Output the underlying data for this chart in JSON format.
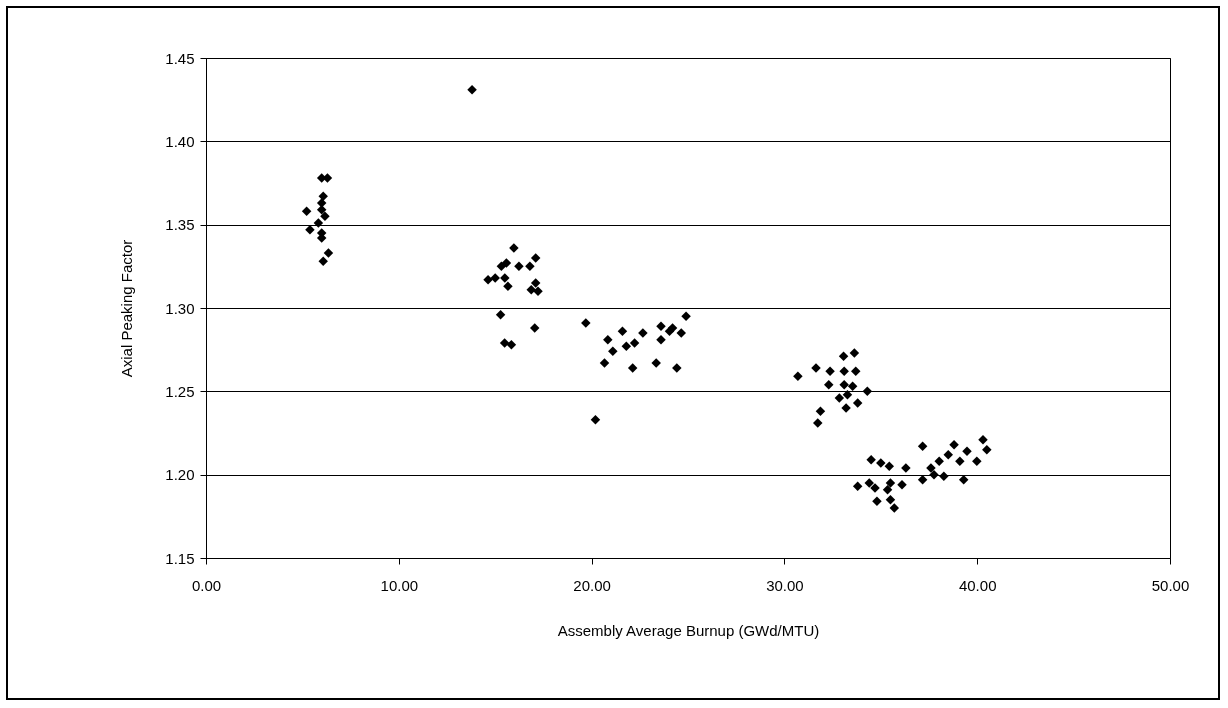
{
  "chart_data": {
    "type": "scatter",
    "xlabel": "Assembly Average Burnup (GWd/MTU)",
    "ylabel": "Axial Peaking Factor",
    "marker": "diamond",
    "grid": "y",
    "xlim": [
      0,
      50
    ],
    "xticks": [
      {
        "value": 0,
        "label": "0.00"
      },
      {
        "value": 10,
        "label": "10.00"
      },
      {
        "value": 20,
        "label": "20.00"
      },
      {
        "value": 30,
        "label": "30.00"
      },
      {
        "value": 40,
        "label": "40.00"
      },
      {
        "value": 50,
        "label": "50.00"
      }
    ],
    "ylim": [
      1.15,
      1.45
    ],
    "yticks": [
      1.15,
      {
        "value": 1.2,
        "label": "1.20"
      },
      1.25,
      {
        "value": 1.3,
        "label": "1.30"
      },
      1.35,
      {
        "value": 1.4,
        "label": "1.40"
      },
      1.45
    ],
    "series": [
      {
        "color": "#000000",
        "x": [
          6.0,
          6.3,
          6.08,
          6.0,
          5.22,
          6.0,
          6.17,
          5.83,
          5.39,
          6.0,
          6.0,
          6.35,
          6.08,
          13.8,
          15.97,
          15.58,
          15.32,
          16.23,
          17.1,
          16.8,
          14.63,
          15.0,
          15.5,
          15.66,
          17.1,
          16.87,
          17.22,
          15.28,
          17.05,
          15.49,
          15.84,
          20.84,
          21.6,
          21.1,
          21.8,
          22.23,
          22.66,
          23.6,
          24.04,
          24.65,
          20.67,
          22.13,
          23.35,
          24.42,
          20.2,
          19.7,
          23.6,
          24.2,
          24.9,
          30.7,
          31.64,
          32.37,
          33.07,
          33.63,
          33.1,
          33.7,
          32.3,
          33.1,
          33.54,
          34.3,
          32.85,
          33.27,
          33.2,
          33.8,
          31.87,
          31.73,
          37.17,
          38.8,
          40.3,
          40.5,
          39.47,
          38.5,
          38.03,
          39.1,
          39.98,
          34.5,
          35.0,
          35.44,
          36.3,
          37.6,
          37.76,
          38.27,
          37.17,
          39.3,
          33.8,
          34.4,
          34.7,
          35.5,
          36.1,
          35.35,
          34.8,
          35.5,
          35.7
        ],
        "values": [
          1.378,
          1.378,
          1.367,
          1.363,
          1.358,
          1.359,
          1.355,
          1.351,
          1.347,
          1.345,
          1.342,
          1.333,
          1.328,
          1.431,
          1.336,
          1.327,
          1.325,
          1.325,
          1.33,
          1.325,
          1.317,
          1.318,
          1.318,
          1.313,
          1.315,
          1.311,
          1.31,
          1.296,
          1.288,
          1.279,
          1.278,
          1.281,
          1.286,
          1.274,
          1.277,
          1.279,
          1.285,
          1.281,
          1.286,
          1.285,
          1.267,
          1.264,
          1.267,
          1.264,
          1.233,
          1.291,
          1.289,
          1.288,
          1.295,
          1.259,
          1.264,
          1.262,
          1.271,
          1.273,
          1.262,
          1.262,
          1.254,
          1.254,
          1.253,
          1.25,
          1.246,
          1.248,
          1.24,
          1.243,
          1.238,
          1.231,
          1.217,
          1.218,
          1.221,
          1.215,
          1.214,
          1.212,
          1.208,
          1.208,
          1.208,
          1.209,
          1.207,
          1.205,
          1.204,
          1.204,
          1.2,
          1.199,
          1.197,
          1.197,
          1.193,
          1.195,
          1.192,
          1.195,
          1.194,
          1.191,
          1.184,
          1.185,
          1.18
        ]
      }
    ]
  }
}
